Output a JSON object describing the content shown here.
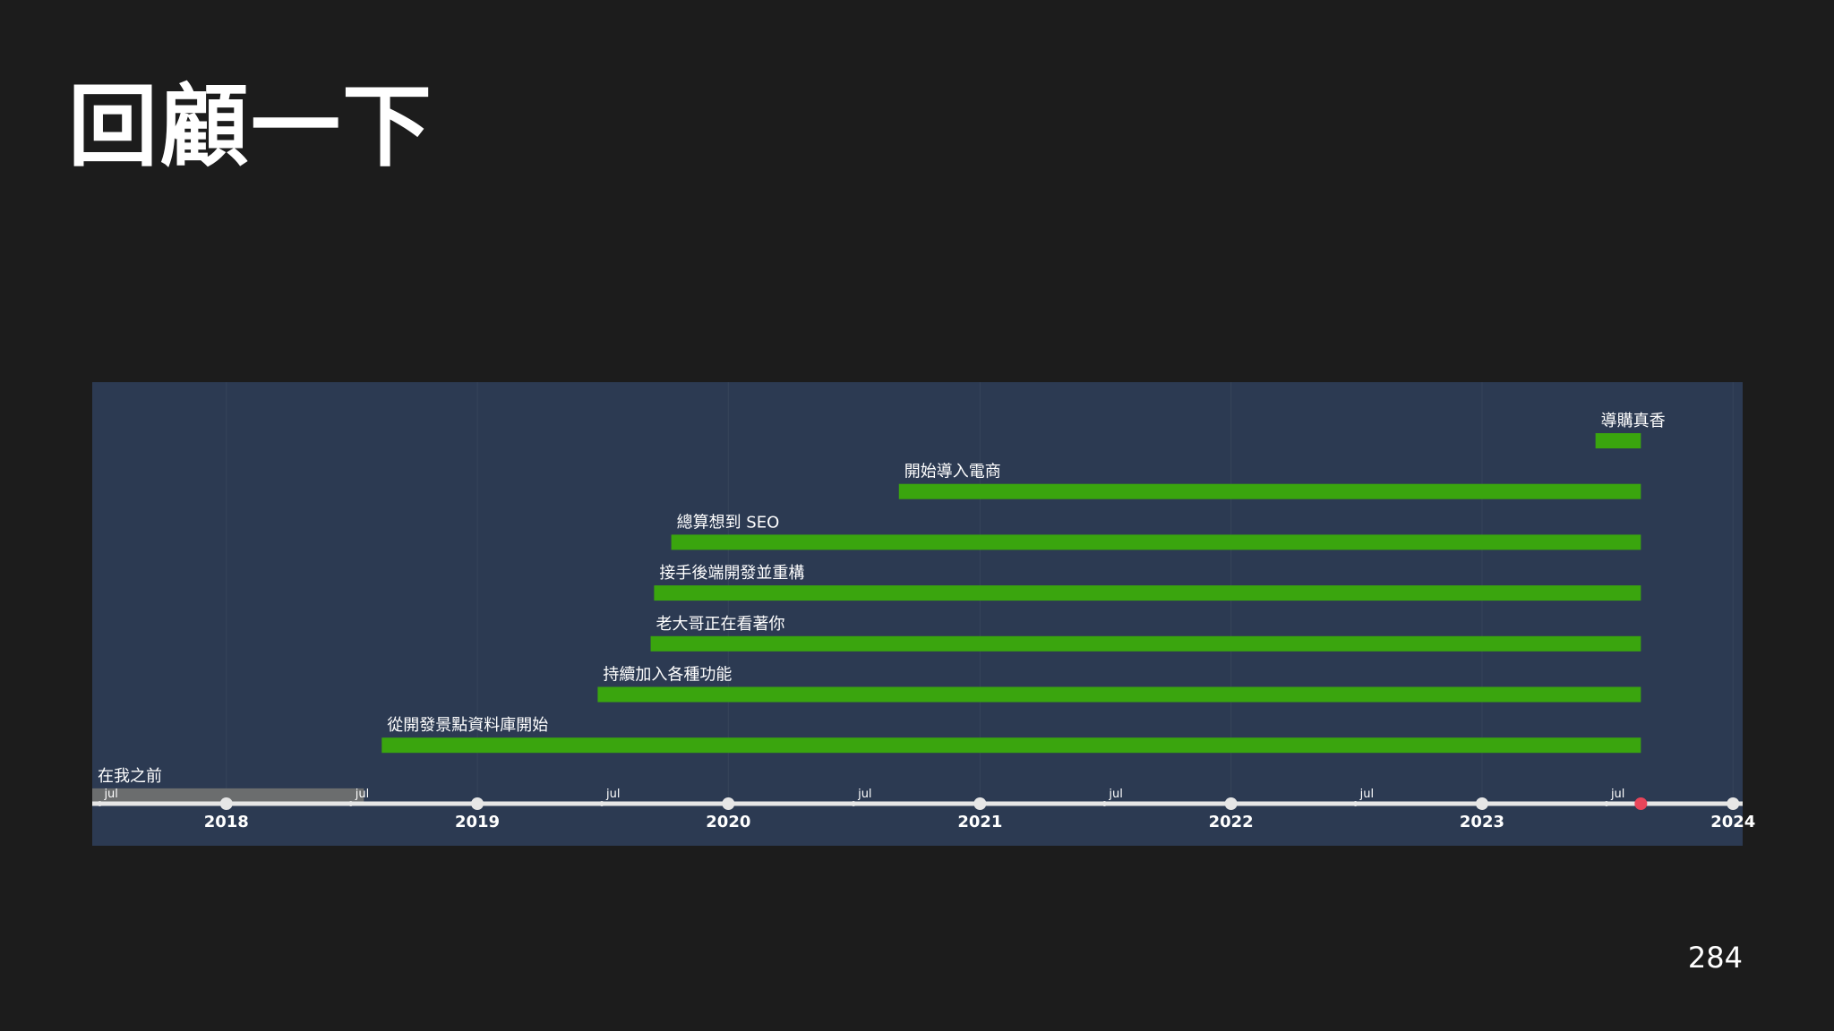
{
  "slide": {
    "title": "回顧一下",
    "page_number": "284"
  },
  "colors": {
    "background": "#1c1c1c",
    "panel": "#2c3a52",
    "bar_active": "#3aa50e",
    "bar_inactive": "#6b6d6e",
    "axis": "#e6e6e6",
    "current_marker": "#e8455a",
    "label_text": "#ffffff"
  },
  "chart_data": {
    "type": "timeline",
    "x_axis": {
      "range": [
        "2017-06-20",
        "2024-01-15"
      ],
      "major_ticks": [
        "2018",
        "2019",
        "2020",
        "2021",
        "2022",
        "2023",
        "2024"
      ],
      "minor_tick_label": "jul",
      "minor_ticks": [
        "2017-07-01",
        "2018-07-01",
        "2019-07-01",
        "2020-07-01",
        "2021-07-01",
        "2022-07-01",
        "2023-07-01"
      ]
    },
    "current_date": "2023-08-20",
    "events": [
      {
        "label": "在我之前",
        "start": "2017-06-20",
        "end": "2018-07-20",
        "status": "past"
      },
      {
        "label": "從開發景點資料庫開始",
        "start": "2018-08-15",
        "end": "2023-08-20",
        "status": "active"
      },
      {
        "label": "持續加入各種功能",
        "start": "2019-06-25",
        "end": "2023-08-20",
        "status": "active"
      },
      {
        "label": "老大哥正在看著你",
        "start": "2019-09-10",
        "end": "2023-08-20",
        "status": "active"
      },
      {
        "label": "接手後端開發並重構",
        "start": "2019-09-15",
        "end": "2023-08-20",
        "status": "active"
      },
      {
        "label": "總算想到 SEO",
        "start": "2019-10-10",
        "end": "2023-08-20",
        "status": "active"
      },
      {
        "label": "開始導入電商",
        "start": "2020-09-05",
        "end": "2023-08-20",
        "status": "active"
      },
      {
        "label": "導購真香",
        "start": "2023-06-15",
        "end": "2023-08-20",
        "status": "active"
      }
    ]
  }
}
